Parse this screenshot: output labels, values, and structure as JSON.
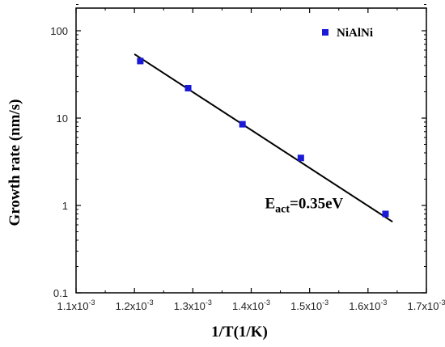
{
  "chart_data": {
    "type": "scatter",
    "xlabel": "1/T(1/K)",
    "ylabel": "Growth rate (nm/s)",
    "xlim": [
      0.0011,
      0.0017
    ],
    "ylim": [
      0.1,
      200
    ],
    "y_scale": "log",
    "grid": false,
    "legend_position": "top-right",
    "x_ticks": [
      {
        "mantissa": "1.1x10",
        "exp": "-3",
        "value": 0.0011
      },
      {
        "mantissa": "1.2x10",
        "exp": "-3",
        "value": 0.0012
      },
      {
        "mantissa": "1.3x10",
        "exp": "-3",
        "value": 0.0013
      },
      {
        "mantissa": "1.4x10",
        "exp": "-3",
        "value": 0.0014
      },
      {
        "mantissa": "1.5x10",
        "exp": "-3",
        "value": 0.0015
      },
      {
        "mantissa": "1.6x10",
        "exp": "-3",
        "value": 0.0016
      },
      {
        "mantissa": "1.7x10",
        "exp": "-3",
        "value": 0.0017
      }
    ],
    "y_ticks": [
      {
        "label": "0.1",
        "value": 0.1
      },
      {
        "label": "1",
        "value": 1
      },
      {
        "label": "10",
        "value": 10
      },
      {
        "label": "100",
        "value": 100
      }
    ],
    "series": [
      {
        "name": "NiAlNi",
        "color": "#1a1ad6",
        "marker": "square",
        "x": [
          0.00121,
          0.001292,
          0.001385,
          0.001485,
          0.00163
        ],
        "y": [
          45,
          22,
          8.5,
          3.5,
          0.8
        ]
      }
    ],
    "fit_line": {
      "color": "#000000",
      "x": [
        0.0012,
        0.001642
      ],
      "y": [
        54,
        0.65
      ]
    },
    "annotation": {
      "text_main": "E",
      "text_sub": "act",
      "text_rest": "=0.35eV",
      "anchor_x": 0.00149,
      "anchor_y": 1.05
    }
  }
}
